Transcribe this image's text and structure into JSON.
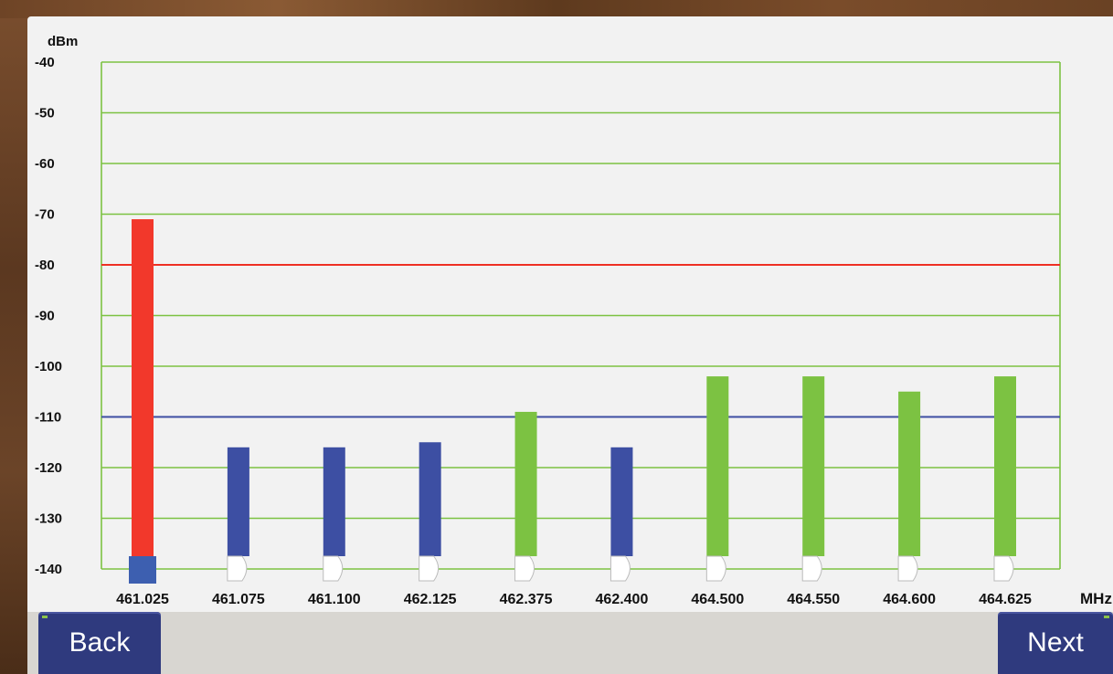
{
  "chart_data": {
    "type": "bar",
    "ylabel": "dBm",
    "xlabel": "MHz",
    "ylim": [
      -140,
      -40
    ],
    "yticks": [
      -40,
      -50,
      -60,
      -70,
      -80,
      -90,
      -100,
      -110,
      -120,
      -130,
      -140
    ],
    "categories": [
      "461.025",
      "461.075",
      "461.100",
      "462.125",
      "462.375",
      "462.400",
      "464.500",
      "464.550",
      "464.600",
      "464.625"
    ],
    "values": [
      -71,
      -116,
      -116,
      -115,
      -109,
      -116,
      -102,
      -102,
      -105,
      -102
    ],
    "bar_colors": [
      "#f2382b",
      "#3d4fa3",
      "#3d4fa3",
      "#3d4fa3",
      "#7cc242",
      "#3d4fa3",
      "#7cc242",
      "#7cc242",
      "#7cc242",
      "#7cc242"
    ],
    "reference_lines": [
      {
        "value": -80,
        "color": "#ee3024"
      },
      {
        "value": -110,
        "color": "#3d4fa3"
      }
    ],
    "selected_index": 0,
    "grid": true,
    "grid_color": "#7cc242",
    "selected_marker_color": "#3d5fb0"
  },
  "buttons": {
    "back": "Back",
    "next": "Next"
  }
}
